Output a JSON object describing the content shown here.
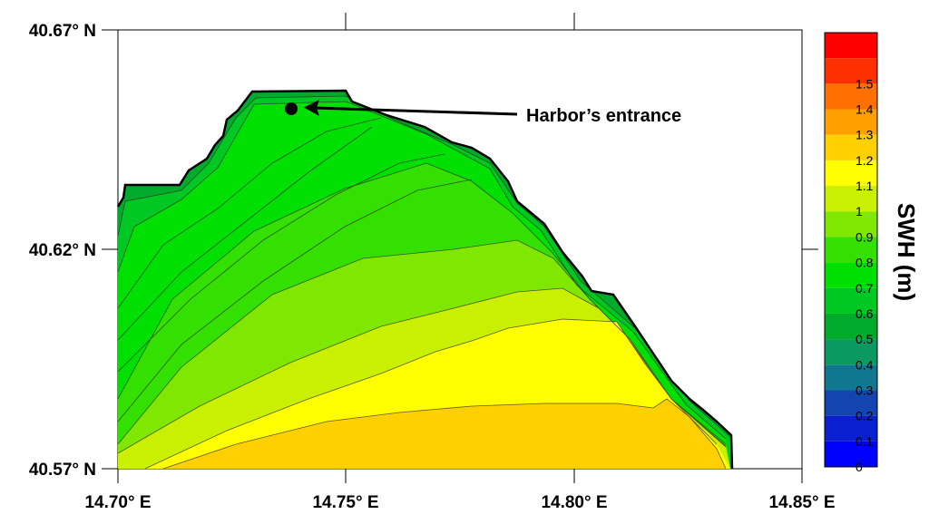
{
  "chart_data": {
    "type": "heatmap",
    "title": "",
    "xlabel": "",
    "ylabel": "",
    "xlim": [
      14.7,
      14.85
    ],
    "ylim": [
      40.57,
      40.67
    ],
    "x_ticks": [
      {
        "value": 14.7,
        "label": "14.70° E"
      },
      {
        "value": 14.75,
        "label": "14.75° E"
      },
      {
        "value": 14.8,
        "label": "14.80° E"
      },
      {
        "value": 14.85,
        "label": "14.85° E"
      }
    ],
    "y_ticks": [
      {
        "value": 40.57,
        "label": "40.57° N"
      },
      {
        "value": 40.62,
        "label": "40.62° N"
      },
      {
        "value": 40.67,
        "label": "40.67° N"
      }
    ],
    "colorbar": {
      "title": "SWH (m)",
      "levels": [
        {
          "label": "0",
          "color": "#0000ff"
        },
        {
          "label": "0.1",
          "color": "#0a1fd0"
        },
        {
          "label": "0.2",
          "color": "#1444b0"
        },
        {
          "label": "0.3",
          "color": "#0f7890"
        },
        {
          "label": "0.4",
          "color": "#0a9a60"
        },
        {
          "label": "0.5",
          "color": "#00aa2a"
        },
        {
          "label": "0.6",
          "color": "#00c822"
        },
        {
          "label": "0.7",
          "color": "#00e000"
        },
        {
          "label": "0.8",
          "color": "#33e000"
        },
        {
          "label": "0.9",
          "color": "#80e800"
        },
        {
          "label": "1",
          "color": "#c8f000"
        },
        {
          "label": "1.1",
          "color": "#ffff00"
        },
        {
          "label": "1.2",
          "color": "#ffd000"
        },
        {
          "label": "1.3",
          "color": "#ffa000"
        },
        {
          "label": "1.4",
          "color": "#ff7000"
        },
        {
          "label": "1.5",
          "color": "#ff3000"
        },
        {
          "label": "",
          "color": "#ff0000"
        }
      ]
    },
    "annotations": [
      {
        "text": "Harbor’s entrance",
        "point": [
          14.738,
          40.6505
        ]
      }
    ]
  }
}
